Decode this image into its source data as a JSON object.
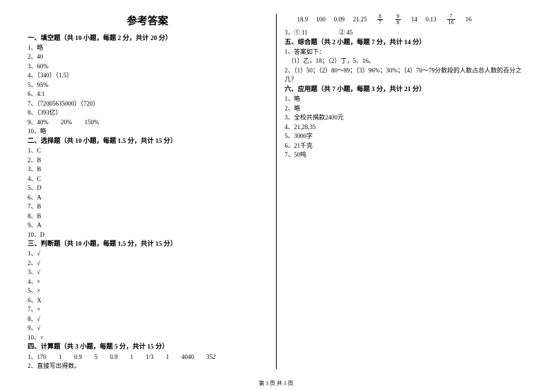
{
  "title": "参考答案",
  "footer": "第 3 页 共 3 页",
  "left": {
    "s1": {
      "head": "一、填空题（共 10 小题，每题 2 分，共计 20 分）",
      "items": [
        "1、略",
        "2、40",
        "3、60%",
        "4、（340）（1.5）",
        "5、95%",
        "6、4:1",
        "7、（72005635000）（720）",
        "8、（393亿）",
        "9、40%　　20%　　150%",
        "10、略"
      ]
    },
    "s2": {
      "head": "二、选择题（共 10 小题，每题 1.5 分，共计 15 分）",
      "items": [
        "1、C",
        "2、B",
        "3、B",
        "4、C",
        "5、D",
        "6、A",
        "7、B",
        "8、B",
        "9、A",
        "10、D"
      ]
    },
    "s3": {
      "head": "三、判断题（共 10 小题，每题 1.5 分，共计 15 分）",
      "items": [
        "1、√",
        "2、√",
        "3、√",
        "4、×",
        "5、×",
        "6、X",
        "7、×",
        "8、√",
        "9、√",
        "10、×"
      ]
    },
    "s4": {
      "head": "四、计算题（共 3 小题，每题 5 分，共计 15 分）",
      "items": [
        "1、170　　1　　0.9　　5　　0.9　　1　　1/3　　1　　4040　　352",
        "2、直接写出得数。"
      ]
    }
  },
  "right": {
    "row": {
      "v1": "18.9",
      "v2": "100",
      "v3": "0.09",
      "v4": "21.25",
      "f1n": "8",
      "f1d": "7",
      "f2n": "9",
      "f2d": "8",
      "v5": "14",
      "v6": "0.13",
      "f3n": "7",
      "f3d": "16",
      "v7": "16"
    },
    "line3": "3、① 11　　　　　② 45",
    "s5": {
      "head": "五、综合题（共 2 小题，每题 7 分，共计 14 分）",
      "items": [
        "1、答案如下：",
        "　（1）乙，18；（2）丁，5、16。",
        "2、（1）50；（2）80～89；（3）96%；30%；（4）70～79分数段的人数占总人数的百分之几？"
      ]
    },
    "s6": {
      "head": "六、应用题（共 7 小题，每题 3 分，共计 21 分）",
      "items": [
        "1、略",
        "2、略",
        "3、全校共捐款2400元",
        "4、21,28,35",
        "5、3000字",
        "6、21千克",
        "7、50吨"
      ]
    }
  }
}
